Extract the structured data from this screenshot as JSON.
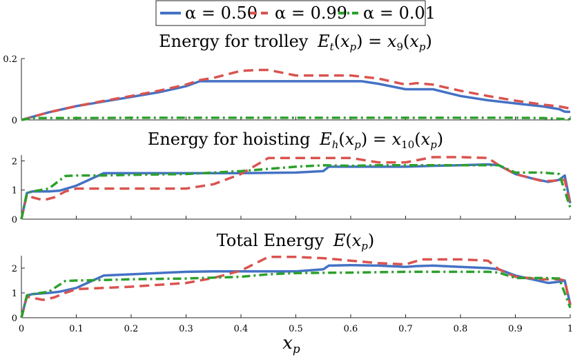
{
  "chart_data": [
    {
      "type": "line",
      "title": "Energy for trolley",
      "title_math": "E_t(x_p) = x_9(x_p)",
      "xlabel": "",
      "ylabel": "",
      "xlim": [
        0,
        1
      ],
      "ylim": [
        0,
        0.2
      ],
      "yticks": [
        0,
        0.2
      ],
      "ytick_labels": [
        "0",
        "0.2"
      ],
      "series": [
        {
          "name": "α = 0.50",
          "color": "#4472c4",
          "style": "solid",
          "x": [
            0,
            0.02,
            0.05,
            0.1,
            0.15,
            0.2,
            0.25,
            0.3,
            0.325,
            0.35,
            0.4,
            0.45,
            0.5,
            0.55,
            0.6,
            0.62,
            0.65,
            0.7,
            0.72,
            0.75,
            0.8,
            0.85,
            0.9,
            0.95,
            0.98,
            0.99,
            1.0
          ],
          "y": [
            0,
            0.01,
            0.025,
            0.045,
            0.06,
            0.075,
            0.09,
            0.11,
            0.126,
            0.126,
            0.126,
            0.126,
            0.126,
            0.126,
            0.126,
            0.126,
            0.118,
            0.1,
            0.1,
            0.1,
            0.078,
            0.064,
            0.054,
            0.044,
            0.035,
            0.027,
            0.026
          ]
        },
        {
          "name": "α = 0.99",
          "color": "#d9534f",
          "style": "dashed",
          "x": [
            0,
            0.02,
            0.05,
            0.1,
            0.15,
            0.2,
            0.25,
            0.3,
            0.325,
            0.35,
            0.4,
            0.43,
            0.45,
            0.5,
            0.55,
            0.6,
            0.65,
            0.7,
            0.72,
            0.75,
            0.8,
            0.85,
            0.9,
            0.95,
            0.98,
            1.0
          ],
          "y": [
            0,
            0.01,
            0.025,
            0.045,
            0.062,
            0.078,
            0.095,
            0.115,
            0.13,
            0.137,
            0.16,
            0.163,
            0.163,
            0.145,
            0.145,
            0.145,
            0.135,
            0.115,
            0.12,
            0.115,
            0.095,
            0.078,
            0.063,
            0.05,
            0.044,
            0.037
          ]
        },
        {
          "name": "α = 0.01",
          "color": "#2ca02c",
          "style": "dashdot",
          "x": [
            0,
            0.02,
            0.05,
            0.1,
            0.2,
            0.3,
            0.4,
            0.5,
            0.6,
            0.7,
            0.8,
            0.9,
            0.95,
            1.0
          ],
          "y": [
            0,
            0.006,
            0.006,
            0.006,
            0.007,
            0.007,
            0.007,
            0.007,
            0.007,
            0.007,
            0.007,
            0.007,
            0.006,
            0.002
          ]
        }
      ]
    },
    {
      "type": "line",
      "title": "Energy for hoisting",
      "title_math": "E_h(x_p) = x_10(x_p)",
      "xlabel": "",
      "ylabel": "",
      "xlim": [
        0,
        1
      ],
      "ylim": [
        0,
        2.2
      ],
      "yticks": [
        0,
        1,
        2
      ],
      "ytick_labels": [
        "0",
        "1",
        "2"
      ],
      "series": [
        {
          "name": "α = 0.50",
          "color": "#4472c4",
          "style": "solid",
          "x": [
            0,
            0.01,
            0.02,
            0.05,
            0.07,
            0.1,
            0.15,
            0.2,
            0.3,
            0.4,
            0.5,
            0.55,
            0.56,
            0.6,
            0.65,
            0.7,
            0.75,
            0.8,
            0.85,
            0.87,
            0.9,
            0.93,
            0.96,
            0.98,
            0.99,
            1.0
          ],
          "y": [
            0,
            0.9,
            0.95,
            0.95,
            0.98,
            1.15,
            1.58,
            1.58,
            1.58,
            1.58,
            1.6,
            1.65,
            1.8,
            1.8,
            1.8,
            1.8,
            1.83,
            1.85,
            1.88,
            1.85,
            1.55,
            1.4,
            1.28,
            1.35,
            1.5,
            0.55
          ]
        },
        {
          "name": "α = 0.99",
          "color": "#d9534f",
          "style": "dashed",
          "x": [
            0,
            0.01,
            0.02,
            0.04,
            0.06,
            0.08,
            0.1,
            0.15,
            0.2,
            0.3,
            0.35,
            0.4,
            0.45,
            0.5,
            0.55,
            0.6,
            0.65,
            0.7,
            0.75,
            0.8,
            0.85,
            0.87,
            0.9,
            0.95,
            0.97,
            0.99,
            1.0
          ],
          "y": [
            0,
            0.85,
            0.75,
            0.65,
            0.75,
            0.95,
            1.05,
            1.05,
            1.05,
            1.05,
            1.2,
            1.55,
            2.1,
            2.1,
            2.1,
            2.1,
            1.95,
            1.95,
            2.13,
            2.13,
            2.1,
            1.85,
            1.55,
            1.3,
            1.32,
            1.35,
            0.5
          ]
        },
        {
          "name": "α = 0.01",
          "color": "#2ca02c",
          "style": "dashdot",
          "x": [
            0,
            0.01,
            0.02,
            0.05,
            0.08,
            0.1,
            0.15,
            0.2,
            0.3,
            0.4,
            0.5,
            0.55,
            0.6,
            0.65,
            0.7,
            0.75,
            0.8,
            0.85,
            0.87,
            0.9,
            0.95,
            0.98,
            1.0
          ],
          "y": [
            0,
            0.9,
            0.95,
            1.05,
            1.48,
            1.5,
            1.5,
            1.52,
            1.55,
            1.65,
            1.8,
            1.85,
            1.83,
            1.85,
            1.85,
            1.85,
            1.85,
            1.85,
            1.85,
            1.6,
            1.6,
            1.55,
            0.4
          ]
        }
      ]
    },
    {
      "type": "line",
      "title": "Total Energy",
      "title_math": "E(x_p)",
      "xlabel": "x_p",
      "ylabel": "",
      "xlim": [
        0,
        1
      ],
      "ylim": [
        0,
        2.5
      ],
      "xticks": [
        0,
        0.1,
        0.2,
        0.3,
        0.4,
        0.5,
        0.6,
        0.7,
        0.8,
        0.9,
        1
      ],
      "xtick_labels": [
        "0",
        "0.1",
        "0.2",
        "0.3",
        "0.4",
        "0.5",
        "0.6",
        "0.7",
        "0.8",
        "0.9",
        "1"
      ],
      "yticks": [
        0,
        1,
        2
      ],
      "ytick_labels": [
        "0",
        "1",
        "2"
      ],
      "series": [
        {
          "name": "α = 0.50",
          "color": "#4472c4",
          "style": "solid",
          "x": [
            0,
            0.01,
            0.02,
            0.05,
            0.07,
            0.1,
            0.12,
            0.15,
            0.2,
            0.3,
            0.35,
            0.4,
            0.5,
            0.55,
            0.56,
            0.6,
            0.65,
            0.7,
            0.72,
            0.75,
            0.8,
            0.85,
            0.87,
            0.9,
            0.93,
            0.96,
            0.98,
            0.99,
            1.0
          ],
          "y": [
            0,
            0.9,
            0.95,
            1.0,
            1.05,
            1.2,
            1.4,
            1.7,
            1.75,
            1.85,
            1.87,
            1.87,
            1.87,
            1.95,
            2.1,
            2.12,
            2.1,
            2.05,
            2.08,
            2.1,
            2.05,
            2.0,
            1.95,
            1.7,
            1.55,
            1.4,
            1.45,
            1.5,
            0.55
          ]
        },
        {
          "name": "α = 0.99",
          "color": "#d9534f",
          "style": "dashed",
          "x": [
            0,
            0.01,
            0.02,
            0.04,
            0.06,
            0.08,
            0.1,
            0.15,
            0.2,
            0.3,
            0.35,
            0.4,
            0.45,
            0.5,
            0.55,
            0.6,
            0.65,
            0.7,
            0.73,
            0.75,
            0.8,
            0.85,
            0.87,
            0.9,
            0.95,
            0.98,
            0.99,
            1.0
          ],
          "y": [
            0,
            0.85,
            0.8,
            0.72,
            0.82,
            1.0,
            1.15,
            1.2,
            1.25,
            1.4,
            1.6,
            1.9,
            2.45,
            2.45,
            2.4,
            2.3,
            2.2,
            2.15,
            2.35,
            2.35,
            2.35,
            2.3,
            1.95,
            1.65,
            1.55,
            1.55,
            1.5,
            0.5
          ]
        },
        {
          "name": "α = 0.01",
          "color": "#2ca02c",
          "style": "dashdot",
          "x": [
            0,
            0.01,
            0.02,
            0.05,
            0.08,
            0.1,
            0.15,
            0.2,
            0.3,
            0.4,
            0.45,
            0.5,
            0.6,
            0.7,
            0.8,
            0.85,
            0.87,
            0.9,
            0.95,
            0.98,
            1.0
          ],
          "y": [
            0,
            0.9,
            0.95,
            1.05,
            1.48,
            1.5,
            1.52,
            1.55,
            1.58,
            1.65,
            1.75,
            1.8,
            1.82,
            1.85,
            1.85,
            1.85,
            1.82,
            1.6,
            1.6,
            1.58,
            0.4
          ]
        }
      ]
    }
  ],
  "legend": {
    "placement": "top-center",
    "entries": [
      {
        "label": "α = 0.50",
        "color": "#4472c4",
        "style": "solid"
      },
      {
        "label": "α = 0.99",
        "color": "#d9534f",
        "style": "dashed"
      },
      {
        "label": "α = 0.01",
        "color": "#2ca02c",
        "style": "dashdot"
      }
    ]
  },
  "labels": {
    "panel1_title": "Energy for trolley",
    "panel1_title_math": "E_t(x_p) = x_9(x_p)",
    "panel2_title": "Energy for hoisting",
    "panel2_title_math": "E_h(x_p) = x_10(x_p)",
    "panel3_title": "Total Energy",
    "panel3_title_math": "E(x_p)",
    "xlabel": "x_p"
  }
}
